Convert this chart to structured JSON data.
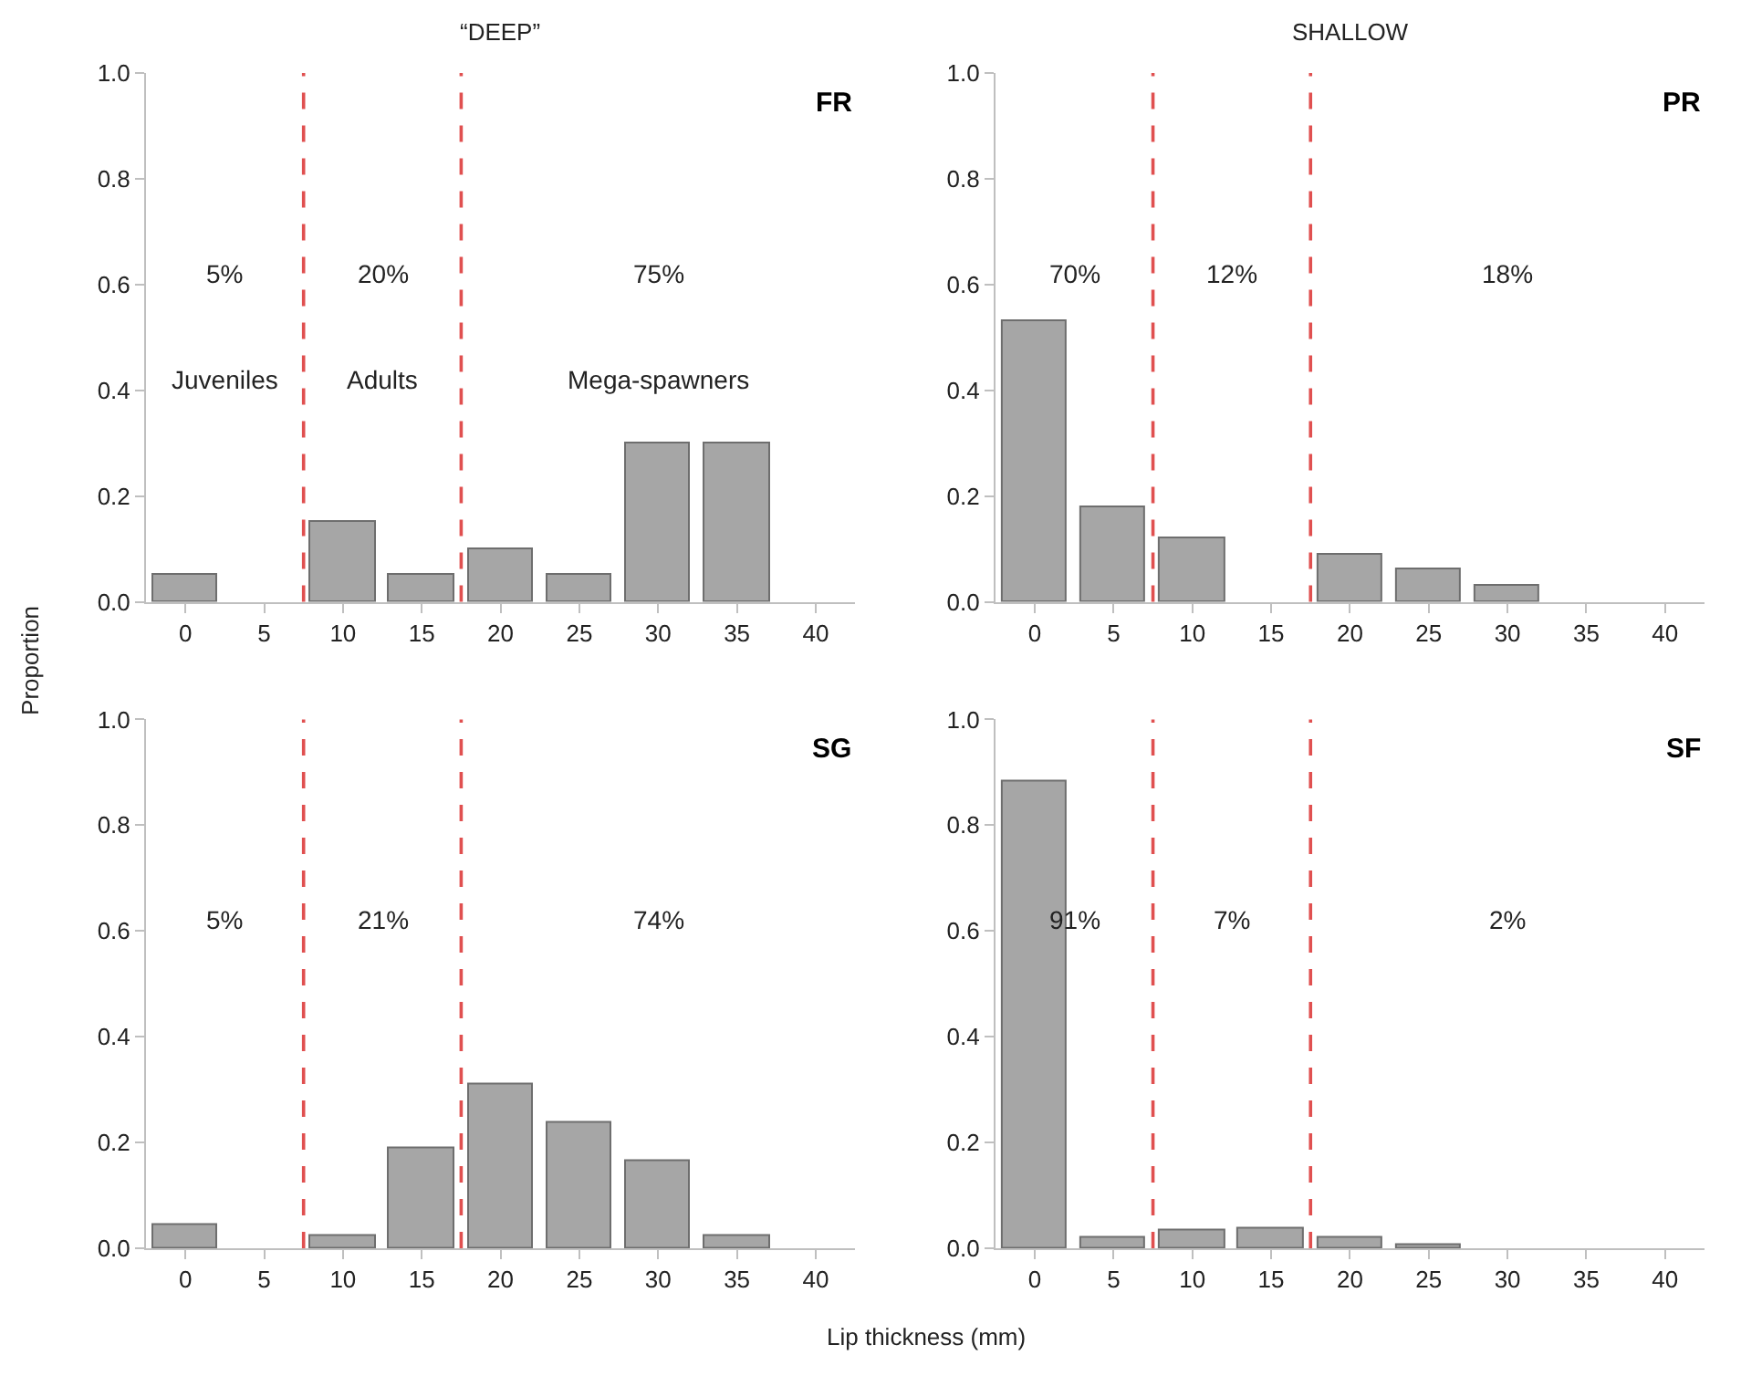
{
  "chart_data": [
    {
      "type": "bar",
      "title": "“DEEP”",
      "x": [
        0,
        5,
        10,
        15,
        20,
        25,
        30,
        35,
        40
      ],
      "values": [
        0.05,
        0,
        0.15,
        0.05,
        0.1,
        0.05,
        0.3,
        0.3,
        0
      ],
      "color": "#a6a6a6",
      "xlim": [
        -2.5,
        42.5
      ],
      "xticks": [
        0,
        5,
        10,
        15,
        20,
        25,
        30,
        35,
        40
      ],
      "ylim": [
        0,
        1
      ],
      "yticks": [
        {
          "value": 0,
          "label": "0.0"
        },
        {
          "value": 0.2,
          "label": "0.2"
        },
        {
          "value": 0.4,
          "label": "0.4"
        },
        {
          "value": 0.6,
          "label": "0.6"
        },
        {
          "value": 0.8,
          "label": "0.8"
        },
        {
          "value": 1,
          "label": "1.0"
        }
      ],
      "ref_lines": [
        {
          "axis": "x",
          "value": 7.5,
          "color": "#e05050",
          "line_style": "dashed"
        },
        {
          "axis": "x",
          "value": 17.5,
          "color": "#e05050",
          "line_style": "dashed"
        }
      ],
      "annotations": [
        "FR",
        "5%",
        "20%",
        "75%",
        "Juveniles",
        "Adults",
        "Mega-spawners"
      ]
    },
    {
      "type": "bar",
      "title": "SHALLOW",
      "x": [
        0,
        5,
        10,
        15,
        20,
        25,
        30,
        35,
        40
      ],
      "values": [
        0.53,
        0.18,
        0.12,
        0,
        0.09,
        0.06,
        0.03,
        0,
        0
      ],
      "color": "#a6a6a6",
      "xlim": [
        -2.5,
        42.5
      ],
      "xticks": [
        0,
        5,
        10,
        15,
        20,
        25,
        30,
        35,
        40
      ],
      "ylim": [
        0,
        1
      ],
      "yticks": [
        {
          "value": 0,
          "label": "0.0"
        },
        {
          "value": 0.2,
          "label": "0.2"
        },
        {
          "value": 0.4,
          "label": "0.4"
        },
        {
          "value": 0.6,
          "label": "0.6"
        },
        {
          "value": 0.8,
          "label": "0.8"
        },
        {
          "value": 1,
          "label": "1.0"
        }
      ],
      "ref_lines": [
        {
          "axis": "x",
          "value": 7.5,
          "color": "#e05050",
          "line_style": "dashed"
        },
        {
          "axis": "x",
          "value": 17.5,
          "color": "#e05050",
          "line_style": "dashed"
        }
      ],
      "annotations": [
        "PR",
        "70%",
        "12%",
        "18%"
      ]
    },
    {
      "type": "bar",
      "ylabel": "Proportion",
      "x": [
        0,
        5,
        10,
        15,
        20,
        25,
        30,
        35,
        40
      ],
      "values": [
        0.045,
        0,
        0.024,
        0.19,
        0.31,
        0.236,
        0.166,
        0.024,
        0
      ],
      "color": "#a6a6a6",
      "xlim": [
        -2.5,
        42.5
      ],
      "xticks": [
        0,
        5,
        10,
        15,
        20,
        25,
        30,
        35,
        40
      ],
      "ylim": [
        0,
        1
      ],
      "yticks": [
        {
          "value": 0,
          "label": "0.0"
        },
        {
          "value": 0.2,
          "label": "0.2"
        },
        {
          "value": 0.4,
          "label": "0.4"
        },
        {
          "value": 0.6,
          "label": "0.6"
        },
        {
          "value": 0.8,
          "label": "0.8"
        },
        {
          "value": 1,
          "label": "1.0"
        }
      ],
      "ref_lines": [
        {
          "axis": "x",
          "value": 7.5,
          "color": "#e05050",
          "line_style": "dashed"
        },
        {
          "axis": "x",
          "value": 17.5,
          "color": "#e05050",
          "line_style": "dashed"
        }
      ],
      "annotations": [
        "SG",
        "5%",
        "21%",
        "74%"
      ]
    },
    {
      "type": "bar",
      "xlabel": "Lip thickness (mm)",
      "x": [
        0,
        5,
        10,
        15,
        20,
        25,
        30,
        35,
        40
      ],
      "values": [
        0.884,
        0.02,
        0.033,
        0.037,
        0.019,
        0.005,
        0,
        0,
        0
      ],
      "color": "#a6a6a6",
      "xlim": [
        -2.5,
        42.5
      ],
      "xticks": [
        0,
        5,
        10,
        15,
        20,
        25,
        30,
        35,
        40
      ],
      "ylim": [
        0,
        1
      ],
      "yticks": [
        {
          "value": 0,
          "label": "0.0"
        },
        {
          "value": 0.2,
          "label": "0.2"
        },
        {
          "value": 0.4,
          "label": "0.4"
        },
        {
          "value": 0.6,
          "label": "0.6"
        },
        {
          "value": 0.8,
          "label": "0.8"
        },
        {
          "value": 1,
          "label": "1.0"
        }
      ],
      "ref_lines": [
        {
          "axis": "x",
          "value": 7.5,
          "color": "#e05050",
          "line_style": "dashed"
        },
        {
          "axis": "x",
          "value": 17.5,
          "color": "#e05050",
          "line_style": "dashed"
        }
      ],
      "annotations": [
        "SF",
        "91%",
        "7%",
        "2%"
      ]
    }
  ]
}
